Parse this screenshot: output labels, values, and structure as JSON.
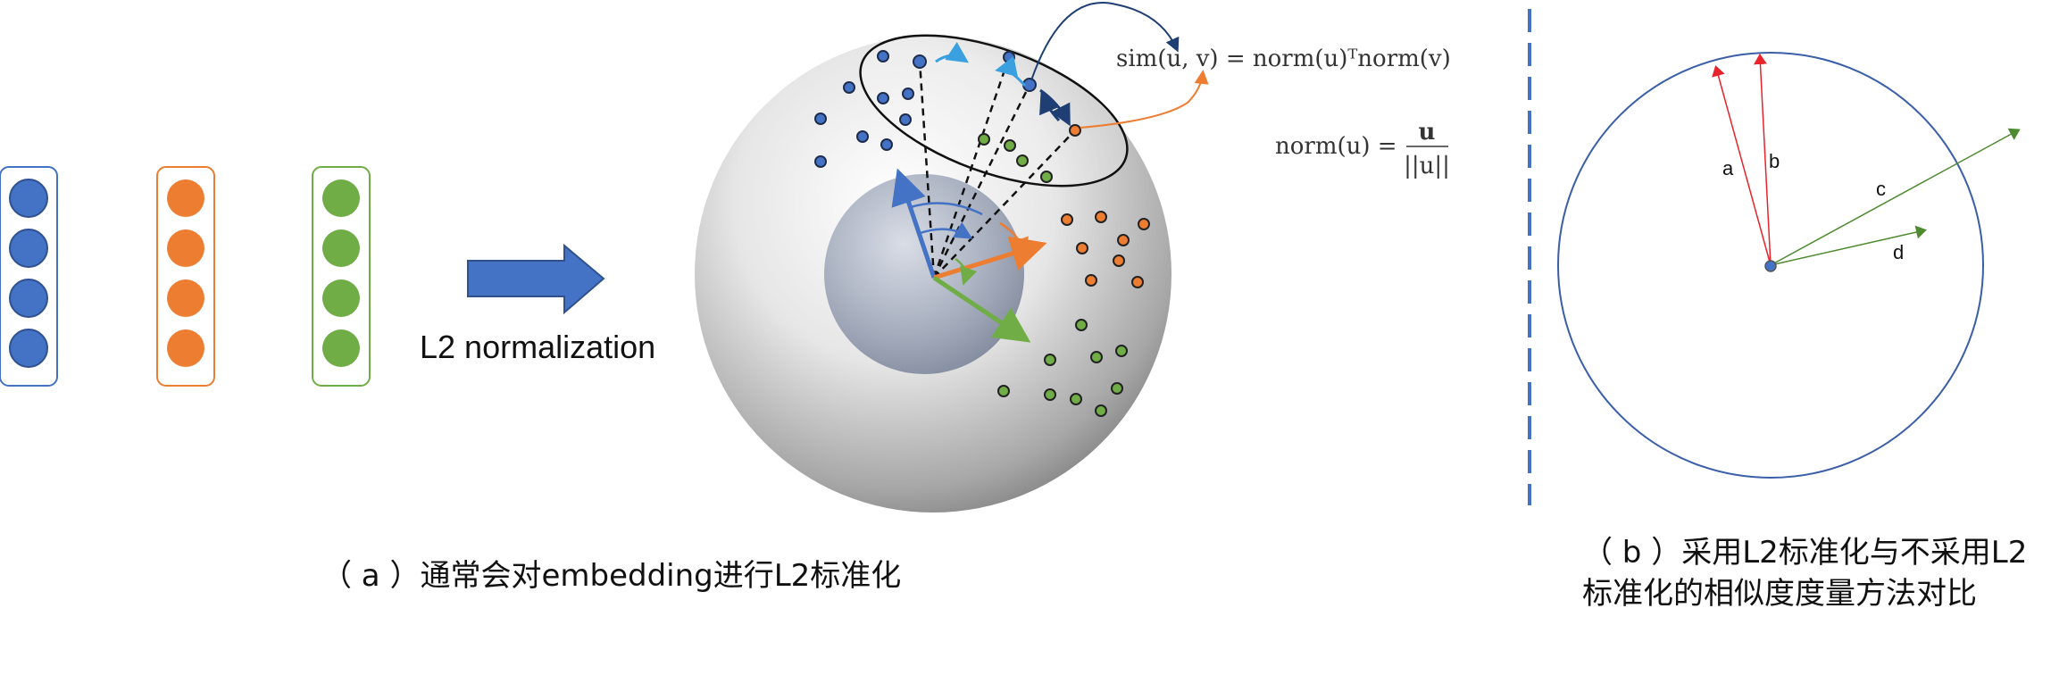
{
  "colors": {
    "blue": "#4472c4",
    "orange": "#ed7d31",
    "green": "#70ad47",
    "red": "#e8232b",
    "dark_green": "#4e8a2f",
    "divider": "#4472c4",
    "circle_b": "#3a5ea8"
  },
  "panel_a": {
    "arrow_label": "L2 normalization",
    "formula_sim": "sim(u, v) = norm(u)ᵀnorm(v)",
    "formula_norm_lhs": "norm(u) =",
    "formula_norm_num": "u",
    "formula_norm_den": "||u||",
    "caption": "（ a ）通常会对embedding进行L2标准化",
    "vectors": [
      {
        "color": "blue",
        "count": 4
      },
      {
        "color": "orange",
        "count": 4
      },
      {
        "color": "green",
        "count": 4
      }
    ]
  },
  "panel_b": {
    "labels": {
      "a": "a",
      "b": "b",
      "c": "c",
      "d": "d"
    },
    "caption": "（ b ）采用L2标准化与不采用L2标准化的相似度度量方法对比"
  }
}
